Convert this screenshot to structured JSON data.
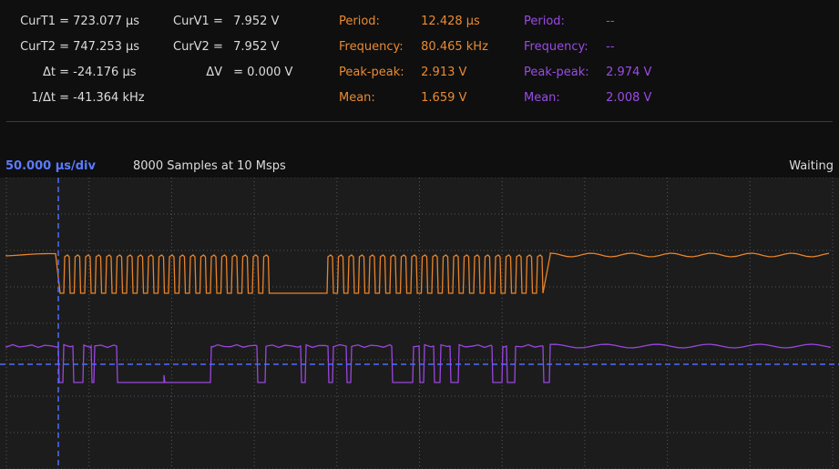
{
  "cursors": [
    {
      "label": "CurT1 =",
      "value": "723.077 µs"
    },
    {
      "label": "CurT2 =",
      "value": "747.253 µs"
    },
    {
      "label": "Δt =",
      "value": "-24.176 µs"
    },
    {
      "label": "1/Δt =",
      "value": "-41.364 kHz"
    }
  ],
  "voltages": [
    {
      "label": "CurV1 =",
      "value": "7.952 V"
    },
    {
      "label": "CurV2 =",
      "value": "7.952 V"
    },
    {
      "label": "ΔV",
      "value": "= 0.000 V"
    }
  ],
  "channel1": [
    {
      "label": "Period:",
      "value": "12.428 µs"
    },
    {
      "label": "Frequency:",
      "value": "80.465 kHz"
    },
    {
      "label": "Peak-peak:",
      "value": "2.913 V"
    },
    {
      "label": "Mean:",
      "value": "1.659 V"
    }
  ],
  "channel2": [
    {
      "label": "Period:",
      "value": "--"
    },
    {
      "label": "Frequency:",
      "value": "--"
    },
    {
      "label": "Peak-peak:",
      "value": "2.974 V"
    },
    {
      "label": "Mean:",
      "value": "2.008 V"
    }
  ],
  "toolbar": {
    "timebase": "50.000 µs/div",
    "samples": "8000 Samples at 10 Msps",
    "status": "Waiting"
  }
}
